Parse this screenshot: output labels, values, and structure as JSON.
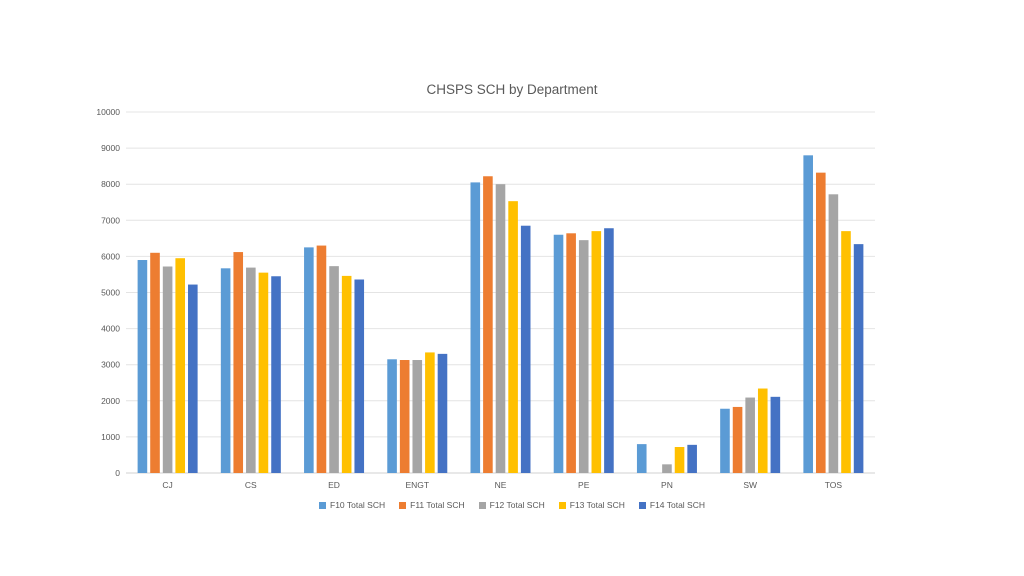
{
  "chart_data": {
    "type": "bar",
    "title": "CHSPS SCH by Department",
    "xlabel": "",
    "ylabel": "",
    "ylim": [
      0,
      10000
    ],
    "yticks": [
      0,
      1000,
      2000,
      3000,
      4000,
      5000,
      6000,
      7000,
      8000,
      9000,
      10000
    ],
    "grid": true,
    "legend_position": "bottom",
    "categories": [
      "CJ",
      "CS",
      "ED",
      "ENGT",
      "NE",
      "PE",
      "PN",
      "SW",
      "TOS"
    ],
    "series": [
      {
        "name": "F10 Total SCH",
        "color": "#5B9BD5",
        "values": [
          5900,
          5670,
          6250,
          3150,
          8050,
          6600,
          800,
          1780,
          8800
        ]
      },
      {
        "name": "F11 Total SCH",
        "color": "#ED7D31",
        "values": [
          6100,
          6120,
          6300,
          3130,
          8220,
          6640,
          0,
          1830,
          8320
        ]
      },
      {
        "name": "F12 Total SCH",
        "color": "#A5A5A5",
        "values": [
          5720,
          5690,
          5730,
          3130,
          8000,
          6450,
          240,
          2090,
          7720
        ]
      },
      {
        "name": "F13 Total SCH",
        "color": "#FFC000",
        "values": [
          5950,
          5550,
          5460,
          3340,
          7530,
          6700,
          720,
          2340,
          6700
        ]
      },
      {
        "name": "F14 Total SCH",
        "color": "#4472C4",
        "values": [
          5220,
          5450,
          5360,
          3300,
          6850,
          6780,
          780,
          2110,
          6340
        ]
      }
    ]
  }
}
